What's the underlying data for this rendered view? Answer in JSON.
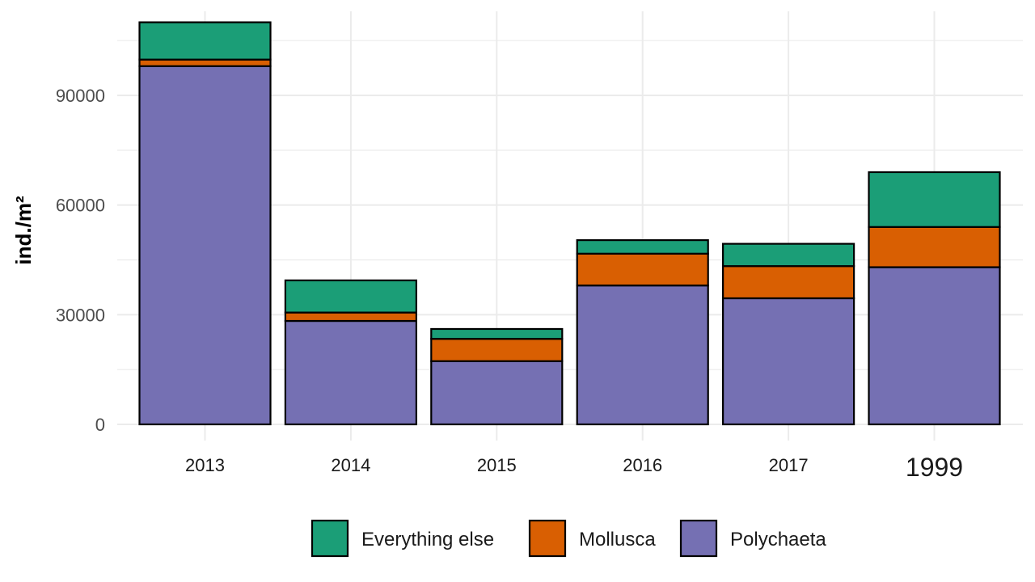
{
  "chart_data": {
    "type": "bar",
    "stacked": true,
    "categories": [
      "2013",
      "2014",
      "2015",
      "2016",
      "2017",
      "1999"
    ],
    "highlight_category": {
      "label": "1999",
      "color": "#ff0000"
    },
    "series": [
      {
        "name": "Polychaeta",
        "color": "#7570b3",
        "values": [
          98000,
          28300,
          17300,
          38000,
          34500,
          43000
        ]
      },
      {
        "name": "Mollusca",
        "color": "#d95f02",
        "values": [
          1800,
          2300,
          6100,
          8700,
          8800,
          11000
        ]
      },
      {
        "name": "Everything else",
        "color": "#1b9e77",
        "values": [
          10200,
          8800,
          2700,
          3700,
          6100,
          15000
        ]
      }
    ],
    "ylabel": "ind./m²",
    "xlabel": "",
    "ylim": [
      0,
      113000
    ],
    "yticks": [
      0,
      30000,
      60000,
      90000
    ],
    "grid": true,
    "legend": {
      "position": "bottom",
      "order": [
        "Everything else",
        "Mollusca",
        "Polychaeta"
      ]
    }
  }
}
